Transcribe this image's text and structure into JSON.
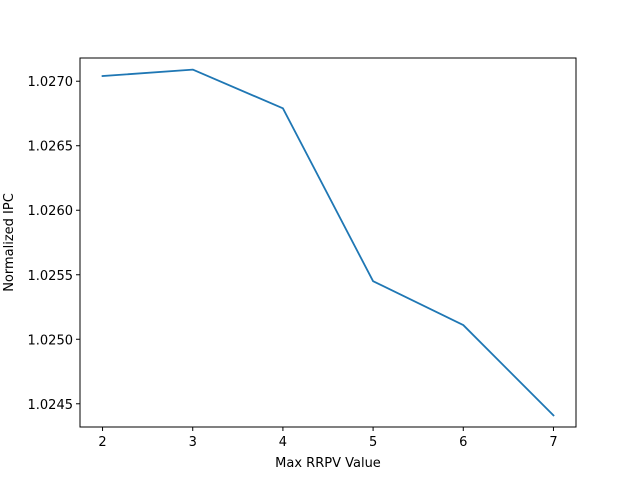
{
  "chart_data": {
    "type": "line",
    "title": "",
    "xlabel": "Max RRPV Value",
    "ylabel": "Normalized IPC",
    "x": [
      2,
      3,
      4,
      5,
      6,
      7
    ],
    "series": [
      {
        "values": [
          1.02704,
          1.02709,
          1.02679,
          1.02545,
          1.02511,
          1.02441
        ],
        "color": "#1f77b4"
      }
    ],
    "xlim": [
      1.75,
      7.25
    ],
    "ylim": [
      1.02432,
      1.02718
    ],
    "xticks": [
      2,
      3,
      4,
      5,
      6,
      7
    ],
    "xtick_labels": [
      "2",
      "3",
      "4",
      "5",
      "6",
      "7"
    ],
    "yticks": [
      1.0245,
      1.025,
      1.0255,
      1.026,
      1.0265,
      1.027
    ],
    "ytick_labels": [
      "1.0245",
      "1.0250",
      "1.0255",
      "1.0260",
      "1.0265",
      "1.0270"
    ],
    "grid": false,
    "legend": "none"
  }
}
